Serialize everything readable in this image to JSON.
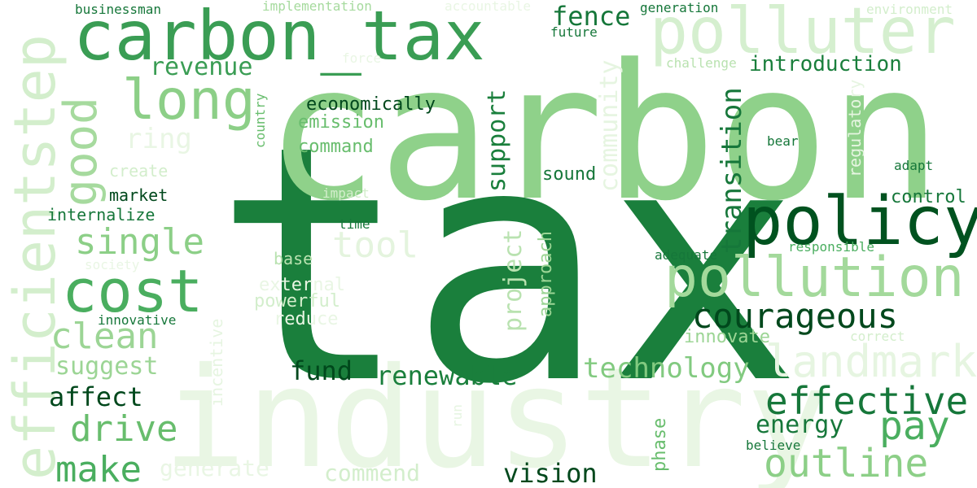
{
  "words": [
    {
      "text": "tax",
      "color": "#1a7f3c",
      "vertical": false
    },
    {
      "text": "carbon",
      "color": "#8fd18a",
      "vertical": false
    },
    {
      "text": "industry",
      "color": "#e9f6e4",
      "vertical": false
    },
    {
      "text": "carbon_tax",
      "color": "#3a9d54",
      "vertical": false
    },
    {
      "text": "polluter",
      "color": "#d5efcf",
      "vertical": false
    },
    {
      "text": "efficientstep",
      "color": "#d3eecc",
      "vertical": true
    },
    {
      "text": "policy",
      "color": "#00521f",
      "vertical": false
    },
    {
      "text": "pollution",
      "color": "#a3d99b",
      "vertical": false
    },
    {
      "text": "cost",
      "color": "#4aae5f",
      "vertical": false
    },
    {
      "text": "long",
      "color": "#8ccf87",
      "vertical": false
    },
    {
      "text": "good",
      "color": "#a6da9e",
      "vertical": true
    },
    {
      "text": "landmark",
      "color": "#e6f5e1",
      "vertical": false
    },
    {
      "text": "effective",
      "color": "#16773a",
      "vertical": false
    },
    {
      "text": "outline",
      "color": "#8ccf87",
      "vertical": false
    },
    {
      "text": "pay",
      "color": "#4aae5f",
      "vertical": false
    },
    {
      "text": "courageous",
      "color": "#00481c",
      "vertical": false
    },
    {
      "text": "single",
      "color": "#8ccf87",
      "vertical": false
    },
    {
      "text": "clean",
      "color": "#9cd595",
      "vertical": false
    },
    {
      "text": "drive",
      "color": "#68bd6d",
      "vertical": false
    },
    {
      "text": "make",
      "color": "#4aae5f",
      "vertical": false
    },
    {
      "text": "tool",
      "color": "#e4f4de",
      "vertical": false
    },
    {
      "text": "renewable",
      "color": "#1a7f3c",
      "vertical": false
    },
    {
      "text": "technology",
      "color": "#82ca80",
      "vertical": false
    },
    {
      "text": "transition",
      "color": "#16773a",
      "vertical": true
    },
    {
      "text": "community",
      "color": "#e6f5e1",
      "vertical": true
    },
    {
      "text": "support",
      "color": "#1a7f3c",
      "vertical": true
    },
    {
      "text": "project",
      "color": "#b9e2b0",
      "vertical": true
    },
    {
      "text": "revenue",
      "color": "#3a9d54",
      "vertical": false
    },
    {
      "text": "fence",
      "color": "#16773a",
      "vertical": false
    },
    {
      "text": "introduction",
      "color": "#1a7f3c",
      "vertical": false
    },
    {
      "text": "vision",
      "color": "#00481c",
      "vertical": false
    },
    {
      "text": "fund",
      "color": "#00481c",
      "vertical": false
    },
    {
      "text": "affect",
      "color": "#00481c",
      "vertical": false
    },
    {
      "text": "suggest",
      "color": "#9cd595",
      "vertical": false
    },
    {
      "text": "energy",
      "color": "#16773a",
      "vertical": false
    },
    {
      "text": "generate",
      "color": "#e9f6e4",
      "vertical": false
    },
    {
      "text": "commend",
      "color": "#d3eecc",
      "vertical": false
    },
    {
      "text": "ring",
      "color": "#e9f6e4",
      "vertical": false
    },
    {
      "text": "economically",
      "color": "#00481c",
      "vertical": false
    },
    {
      "text": "emission",
      "color": "#68bd6d",
      "vertical": false
    },
    {
      "text": "command",
      "color": "#68bd6d",
      "vertical": false
    },
    {
      "text": "sound",
      "color": "#16773a",
      "vertical": false
    },
    {
      "text": "market",
      "color": "#00481c",
      "vertical": false
    },
    {
      "text": "internalize",
      "color": "#16773a",
      "vertical": false
    },
    {
      "text": "create",
      "color": "#d3eecc",
      "vertical": false
    },
    {
      "text": "control",
      "color": "#16773a",
      "vertical": false
    },
    {
      "text": "innovate",
      "color": "#9cd595",
      "vertical": false
    },
    {
      "text": "powerful",
      "color": "#d3eecc",
      "vertical": false
    },
    {
      "text": "external",
      "color": "#e9f6e4",
      "vertical": false
    },
    {
      "text": "reduce",
      "color": "#e9f6e4",
      "vertical": false
    },
    {
      "text": "base",
      "color": "#b9e2b0",
      "vertical": false
    },
    {
      "text": "approach",
      "color": "#9cd595",
      "vertical": true
    },
    {
      "text": "phase",
      "color": "#68bd6d",
      "vertical": true
    },
    {
      "text": "incentive",
      "color": "#e6f5e1",
      "vertical": true
    },
    {
      "text": "regulatory",
      "color": "#e6f5e1",
      "vertical": true
    },
    {
      "text": "country",
      "color": "#68bd6d",
      "vertical": true
    },
    {
      "text": "run",
      "color": "#e6f5e1",
      "vertical": true
    },
    {
      "text": "businessman",
      "color": "#16773a",
      "vertical": false
    },
    {
      "text": "implementation",
      "color": "#a6da9e",
      "vertical": false
    },
    {
      "text": "accountable",
      "color": "#e9f6e4",
      "vertical": false
    },
    {
      "text": "generation",
      "color": "#16773a",
      "vertical": false
    },
    {
      "text": "environment",
      "color": "#d3eecc",
      "vertical": false
    },
    {
      "text": "future",
      "color": "#16773a",
      "vertical": false
    },
    {
      "text": "force",
      "color": "#e9f6e4",
      "vertical": false
    },
    {
      "text": "challenge",
      "color": "#b9e2b0",
      "vertical": false
    },
    {
      "text": "bear",
      "color": "#16773a",
      "vertical": false
    },
    {
      "text": "adapt",
      "color": "#16773a",
      "vertical": false
    },
    {
      "text": "impact",
      "color": "#d3eecc",
      "vertical": false
    },
    {
      "text": "time",
      "color": "#16773a",
      "vertical": false
    },
    {
      "text": "responsible",
      "color": "#4aae5f",
      "vertical": false
    },
    {
      "text": "adequate",
      "color": "#16773a",
      "vertical": false
    },
    {
      "text": "society",
      "color": "#e9f6e4",
      "vertical": false
    },
    {
      "text": "innovative",
      "color": "#16773a",
      "vertical": false
    },
    {
      "text": "correct",
      "color": "#d3eecc",
      "vertical": false
    },
    {
      "text": "believe",
      "color": "#16773a",
      "vertical": false
    }
  ]
}
